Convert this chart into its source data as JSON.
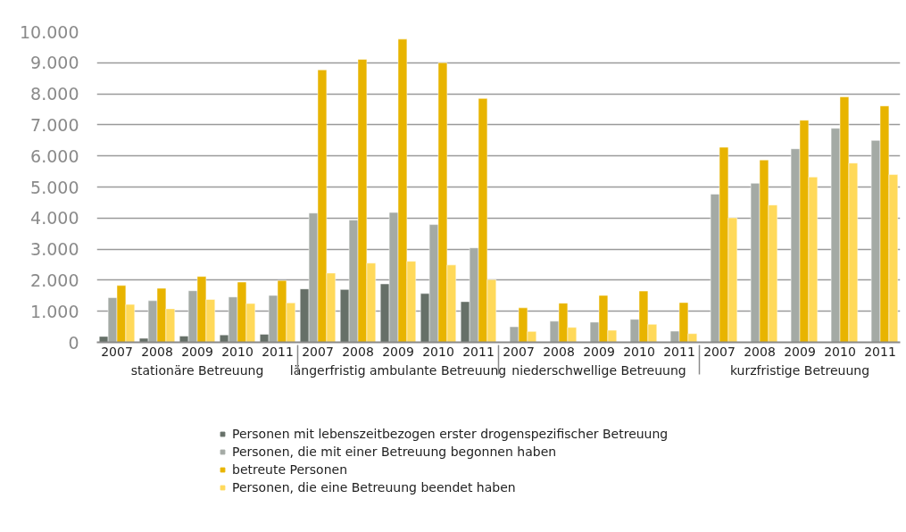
{
  "chart_data": {
    "type": "bar",
    "categories": [
      "2007",
      "2008",
      "2009",
      "2010",
      "2011",
      "2007",
      "2008",
      "2009",
      "2010",
      "2011",
      "2007",
      "2008",
      "2009",
      "2010",
      "2011",
      "2007",
      "2008",
      "2009",
      "2010",
      "2011"
    ],
    "annotations": [
      "stationäre Betreuung",
      "längerfristig ambulante Betreuung",
      "niederschwellige Betreuung",
      "kurzfristige Betreuung"
    ],
    "series": [
      {
        "name": "Personen mit lebenszeitbezogen erster drogenspezifischer Betreuung",
        "color": "#667068",
        "values": [
          190,
          130,
          200,
          240,
          260,
          1720,
          1700,
          1880,
          1570,
          1310,
          null,
          null,
          null,
          null,
          null,
          null,
          null,
          null,
          null,
          null
        ]
      },
      {
        "name": "Personen, die mit einer Betreuung begonnen haben",
        "color": "#a4aaa5",
        "values": [
          1440,
          1340,
          1660,
          1460,
          1510,
          4160,
          3940,
          4180,
          3790,
          3040,
          500,
          680,
          650,
          740,
          360,
          4770,
          5120,
          6230,
          6890,
          6500
        ]
      },
      {
        "name": "betreute Personen",
        "color": "#e8b400",
        "values": [
          1830,
          1740,
          2120,
          1940,
          1990,
          8770,
          9110,
          9760,
          9000,
          7850,
          1110,
          1260,
          1510,
          1650,
          1280,
          6280,
          5870,
          7150,
          7900,
          7610
        ]
      },
      {
        "name": "Personen, die eine Betreuung beendet haben",
        "color": "#ffd95a",
        "values": [
          1220,
          1080,
          1380,
          1250,
          1270,
          2230,
          2550,
          2610,
          2490,
          2020,
          350,
          480,
          390,
          580,
          280,
          4010,
          4420,
          5320,
          5770,
          5400
        ]
      }
    ],
    "ylim": [
      0,
      10000
    ],
    "yticks": [
      0,
      {
        "value": 1000,
        "label": "1.000"
      },
      {
        "value": 2000,
        "label": "2.000"
      },
      {
        "value": 3000,
        "label": "3.000"
      },
      {
        "value": 4000,
        "label": "4.000"
      },
      {
        "value": 5000,
        "label": "5.000"
      },
      {
        "value": 6000,
        "label": "6.000"
      },
      {
        "value": 7000,
        "label": "7.000"
      },
      {
        "value": 8000,
        "label": "8.000"
      },
      {
        "value": 9000,
        "label": "9.000"
      },
      {
        "value": 10000,
        "label": "10.000"
      }
    ],
    "grid": "y",
    "legend": "bottom"
  }
}
